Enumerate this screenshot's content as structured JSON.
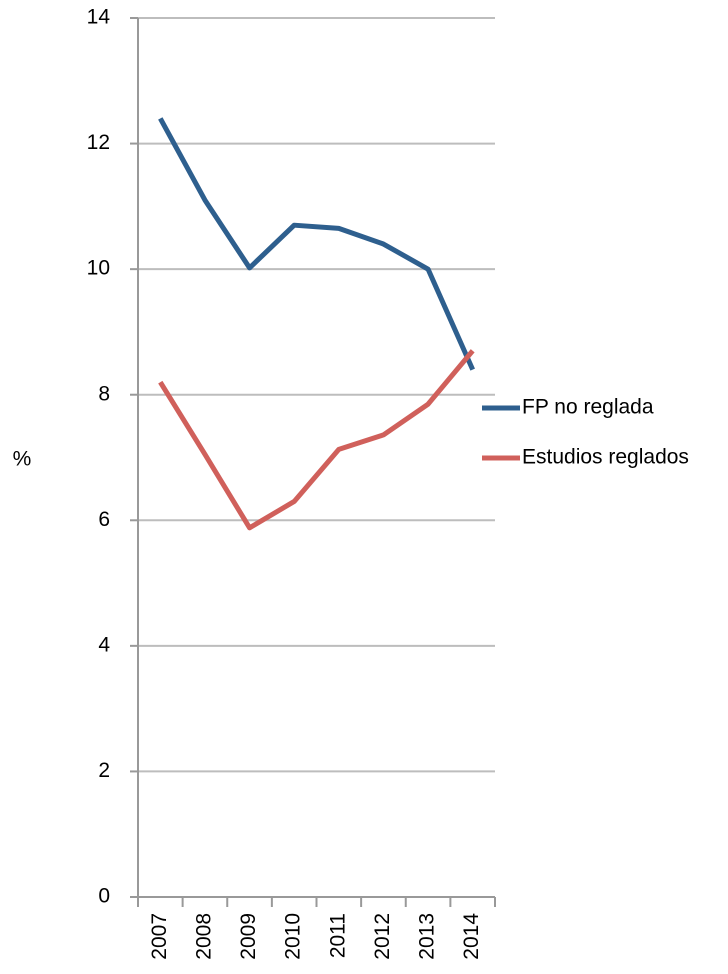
{
  "chart_data": {
    "type": "line",
    "y_label": "%",
    "categories": [
      "2007",
      "2008",
      "2009",
      "2010",
      "2011",
      "2012",
      "2013",
      "2014"
    ],
    "series": [
      {
        "name": "FP no reglada",
        "color": "#2e5f8e",
        "values": [
          12.4,
          11.1,
          10.02,
          10.7,
          10.65,
          10.4,
          10.0,
          8.4
        ]
      },
      {
        "name": "Estudios reglados",
        "color": "#d0605b",
        "values": [
          8.2,
          7.05,
          5.88,
          6.3,
          7.13,
          7.36,
          7.85,
          8.7
        ]
      }
    ],
    "ylim": [
      0,
      14
    ],
    "yticks": [
      0,
      2,
      4,
      6,
      8,
      10,
      12,
      14
    ],
    "grid": true,
    "legend": "right"
  }
}
